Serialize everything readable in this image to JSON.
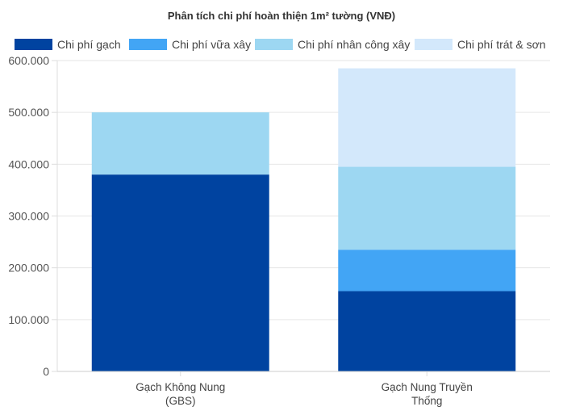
{
  "chart_data": {
    "type": "bar",
    "stacked": true,
    "title": "Phân tích chi phí hoàn thiện 1m² tường (VNĐ)",
    "xlabel": "",
    "ylabel": "",
    "ylim": [
      0,
      600000
    ],
    "yticks": [
      "0",
      "100.000",
      "200.000",
      "300.000",
      "400.000",
      "500.000",
      "600.000"
    ],
    "ytick_values": [
      0,
      100000,
      200000,
      300000,
      400000,
      500000,
      600000
    ],
    "grid": true,
    "legend_position": "top",
    "categories": [
      [
        "Gạch Không Nung",
        "(GBS)"
      ],
      [
        "Gạch Nung Truyền",
        "Thống"
      ]
    ],
    "series": [
      {
        "name": "Chi phí gạch",
        "color": "#0043a0",
        "values": [
          380000,
          155000
        ]
      },
      {
        "name": "Chi phí vữa xây",
        "color": "#42a5f5",
        "values": [
          0,
          80000
        ]
      },
      {
        "name": "Chi phí nhân công xây",
        "color": "#9dd7f2",
        "values": [
          120000,
          160000
        ]
      },
      {
        "name": "Chi phí trát & sơn",
        "color": "#d3e8fb",
        "values": [
          0,
          190000
        ]
      }
    ]
  }
}
